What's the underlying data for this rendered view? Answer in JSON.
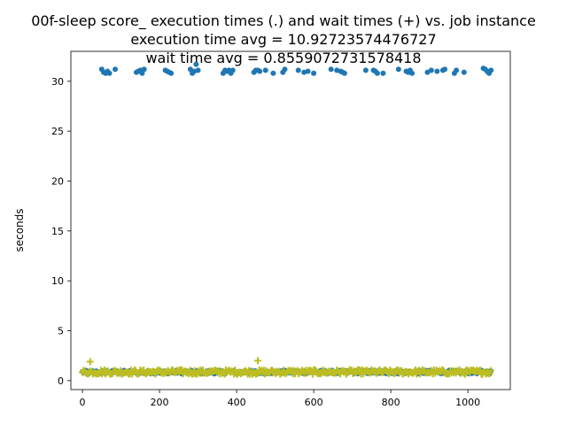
{
  "chart_data": {
    "type": "scatter",
    "title_lines": [
      "00f-sleep score_ execution times (.) and wait times (+) vs. job instance",
      "execution time avg = 10.92723574476727",
      "wait time avg = 0.8559072731578418"
    ],
    "xlabel": "",
    "ylabel": "seconds",
    "xlim": [
      -30,
      1110
    ],
    "ylim": [
      -0.9,
      33.0
    ],
    "x_ticks": [
      0,
      200,
      400,
      600,
      800,
      1000
    ],
    "y_ticks": [
      0,
      5,
      10,
      15,
      20,
      25,
      30
    ],
    "grid": false,
    "legend": "none",
    "n_instances": 1060,
    "series": [
      {
        "marker": ".",
        "color": "#1f77b4",
        "description_baseline": 0.85,
        "high_points": [
          [
            50,
            31.2
          ],
          [
            55,
            30.9
          ],
          [
            60,
            30.8
          ],
          [
            65,
            31.0
          ],
          [
            70,
            30.8
          ],
          [
            85,
            31.2
          ],
          [
            140,
            30.9
          ],
          [
            145,
            31.0
          ],
          [
            150,
            31.1
          ],
          [
            155,
            30.8
          ],
          [
            160,
            31.2
          ],
          [
            215,
            31.1
          ],
          [
            220,
            31.0
          ],
          [
            225,
            30.9
          ],
          [
            230,
            30.8
          ],
          [
            280,
            31.2
          ],
          [
            285,
            30.8
          ],
          [
            290,
            31.0
          ],
          [
            295,
            31.7
          ],
          [
            300,
            31.1
          ],
          [
            365,
            30.8
          ],
          [
            370,
            31.1
          ],
          [
            375,
            31.0
          ],
          [
            380,
            31.1
          ],
          [
            385,
            30.8
          ],
          [
            390,
            31.1
          ],
          [
            445,
            30.9
          ],
          [
            450,
            31.1
          ],
          [
            455,
            31.1
          ],
          [
            460,
            31.0
          ],
          [
            475,
            31.1
          ],
          [
            495,
            30.8
          ],
          [
            520,
            30.9
          ],
          [
            525,
            31.2
          ],
          [
            560,
            31.1
          ],
          [
            575,
            30.9
          ],
          [
            585,
            31.0
          ],
          [
            600,
            30.8
          ],
          [
            645,
            31.2
          ],
          [
            660,
            31.1
          ],
          [
            670,
            31.0
          ],
          [
            675,
            30.9
          ],
          [
            680,
            30.8
          ],
          [
            735,
            31.1
          ],
          [
            755,
            31.1
          ],
          [
            760,
            31.0
          ],
          [
            765,
            30.8
          ],
          [
            780,
            30.8
          ],
          [
            820,
            31.2
          ],
          [
            840,
            31.0
          ],
          [
            845,
            30.9
          ],
          [
            850,
            31.1
          ],
          [
            855,
            30.8
          ],
          [
            895,
            30.9
          ],
          [
            905,
            31.1
          ],
          [
            920,
            31.0
          ],
          [
            935,
            31.1
          ],
          [
            940,
            31.2
          ],
          [
            965,
            30.8
          ],
          [
            970,
            31.1
          ],
          [
            990,
            30.9
          ],
          [
            1040,
            31.3
          ],
          [
            1045,
            31.2
          ],
          [
            1050,
            31.0
          ],
          [
            1055,
            30.8
          ],
          [
            1060,
            31.1
          ]
        ]
      },
      {
        "marker": "+",
        "color": "#bcbd22",
        "description_baseline": 0.86,
        "outliers": [
          [
            20,
            1.9
          ],
          [
            455,
            2.0
          ]
        ]
      }
    ]
  }
}
